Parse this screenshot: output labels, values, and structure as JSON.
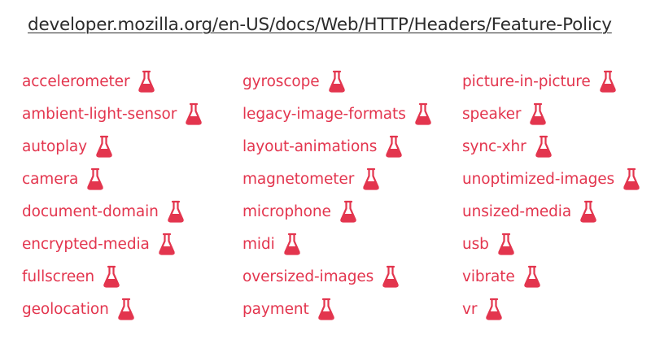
{
  "url": "developer.mozilla.org/en-US/docs/Web/HTTP/Headers/Feature-Policy",
  "columns": [
    [
      "accelerometer",
      "ambient-light-sensor",
      "autoplay",
      "camera",
      "document-domain",
      "encrypted-media",
      "fullscreen",
      "geolocation"
    ],
    [
      "gyroscope",
      "legacy-image-formats",
      "layout-animations",
      "magnetometer",
      "microphone",
      "midi",
      "oversized-images",
      "payment"
    ],
    [
      "picture-in-picture",
      "speaker",
      "sync-xhr",
      "unoptimized-images",
      "unsized-media",
      "usb",
      "vibrate",
      "vr"
    ]
  ],
  "icon": "flask-icon",
  "accent_color": "#e3354e"
}
